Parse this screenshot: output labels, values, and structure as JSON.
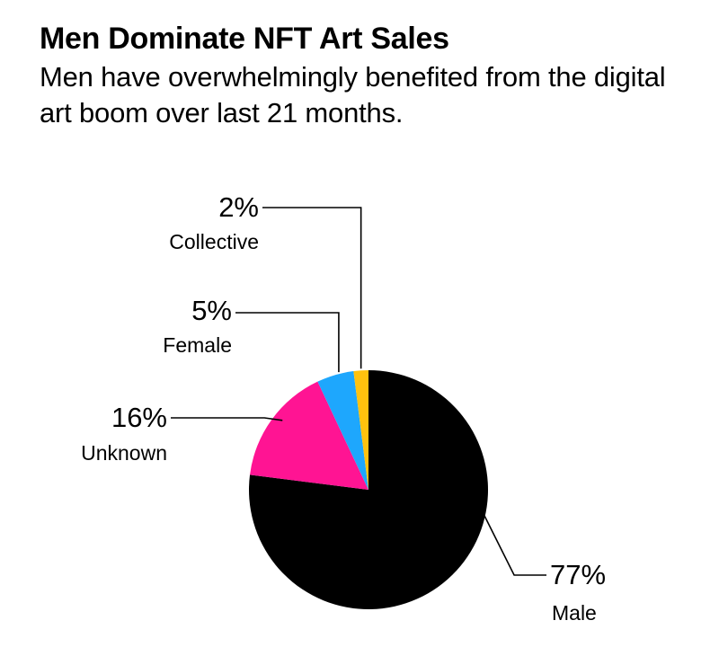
{
  "chart_data": {
    "type": "pie",
    "title": "Men Dominate NFT Art Sales",
    "subtitle": "Men have overwhelmingly benefited from the digital art boom over last 21 months.",
    "slices": [
      {
        "label": "Male",
        "value": 77,
        "value_label": "77%",
        "color": "#000000"
      },
      {
        "label": "Unknown",
        "value": 16,
        "value_label": "16%",
        "color": "#ff1493"
      },
      {
        "label": "Female",
        "value": 5,
        "value_label": "5%",
        "color": "#1ea7fd"
      },
      {
        "label": "Collective",
        "value": 2,
        "value_label": "2%",
        "color": "#ffc20e"
      }
    ],
    "start_angle": "12 o'clock",
    "direction": "clockwise",
    "legend": "none"
  }
}
